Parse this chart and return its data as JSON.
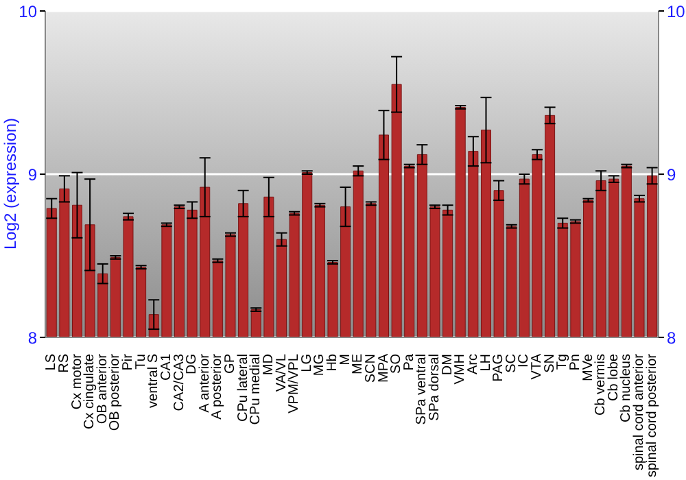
{
  "chart_data": {
    "type": "bar",
    "ylabel": "Log2 (expression)",
    "categories": [
      "LS",
      "RS",
      "Cx motor",
      "Cx cingulate",
      "OB anterior",
      "OB posterior",
      "Pir",
      "Tu",
      "ventral S",
      "CA1",
      "CA2/CA3",
      "DG",
      "A anterior",
      "A posterior",
      "GP",
      "CPu lateral",
      "CPu medial",
      "MD",
      "VA/VL",
      "VPM/VPL",
      "LG",
      "MG",
      "Hb",
      "M",
      "ME",
      "SCN",
      "MPA",
      "SO",
      "Pa",
      "SPa ventral",
      "SPa dorsal",
      "DM",
      "VMH",
      "Arc",
      "LH",
      "PAG",
      "SC",
      "IC",
      "VTA",
      "SN",
      "Tg",
      "Pn",
      "MVe",
      "Cb vermis",
      "Cb lobe",
      "Cb nucleus",
      "spinal cord anterior",
      "spinal cord posterior"
    ],
    "values": [
      8.79,
      8.91,
      8.81,
      8.69,
      8.39,
      8.49,
      8.74,
      8.43,
      8.14,
      8.69,
      8.8,
      8.78,
      8.92,
      8.47,
      8.63,
      8.82,
      8.17,
      8.86,
      8.6,
      8.76,
      9.01,
      8.81,
      8.46,
      8.8,
      9.02,
      8.82,
      9.24,
      9.55,
      9.05,
      9.12,
      8.8,
      8.78,
      9.41,
      9.14,
      9.27,
      8.9,
      8.68,
      8.97,
      9.12,
      9.36,
      8.7,
      8.71,
      8.84,
      8.96,
      8.97,
      9.05,
      8.85,
      8.99
    ],
    "errors": [
      0.06,
      0.08,
      0.2,
      0.28,
      0.06,
      0.01,
      0.02,
      0.01,
      0.09,
      0.01,
      0.01,
      0.05,
      0.18,
      0.01,
      0.01,
      0.08,
      0.01,
      0.12,
      0.04,
      0.01,
      0.01,
      0.01,
      0.01,
      0.12,
      0.03,
      0.01,
      0.15,
      0.17,
      0.01,
      0.06,
      0.01,
      0.03,
      0.01,
      0.09,
      0.2,
      0.06,
      0.01,
      0.03,
      0.03,
      0.05,
      0.03,
      0.01,
      0.01,
      0.06,
      0.02,
      0.01,
      0.02,
      0.05
    ],
    "color": "#b52a2a",
    "ylim": [
      8,
      10
    ],
    "yticks": [
      8,
      9,
      10
    ],
    "y2lim": [
      8,
      10
    ],
    "y2ticks": [
      8,
      9,
      10
    ],
    "grid": "y"
  }
}
